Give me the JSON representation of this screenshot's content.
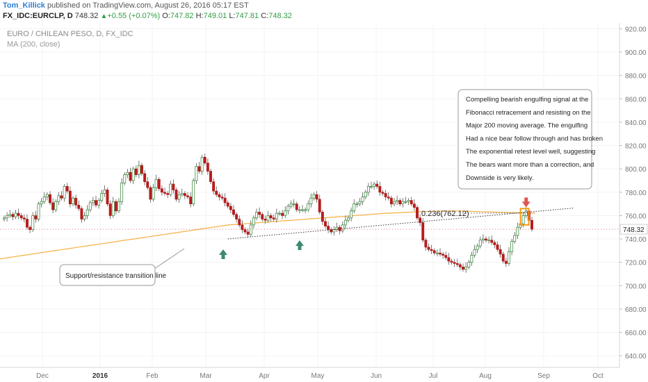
{
  "header": {
    "author": "Tom_Killick",
    "published_text": " published on TradingView.com, August 26, 2016 05:17 EST",
    "symbol": "FX_IDC:EURCLP, D",
    "last": "748.32",
    "change": "+0.55 (+0.07%)",
    "o_label": "O:",
    "o_value": "747.82",
    "h_label": "H:",
    "h_value": "749.01",
    "l_label": "L:",
    "l_value": "747.81",
    "c_label": "C:",
    "c_value": "748.32"
  },
  "legend": {
    "title": "EURO / CHILEAN PESO, D, FX_IDC",
    "ma": "MA (200, close)"
  },
  "colors": {
    "up_candle": "#ffffff",
    "up_border": "#2e7d32",
    "down_candle": "#b71c1c",
    "ma_line": "#f5b041",
    "arrow_green": "#3d8b6e",
    "arrow_red": "#e0574f",
    "highlight": "#f39c12",
    "last_price_line": "#c62828"
  },
  "icons": {
    "up_arrow": "triangle-up",
    "support_arrow": "arrow-up",
    "resistance_arrow": "arrow-down"
  },
  "annotations": {
    "callout_main": [
      "Compelling bearish engulfing signal at the",
      "Fibonacci retracement and resisting on the",
      "Major 200 moving average. The engulfing",
      "Had a nice bear follow through and has broken",
      "The exponential retest level well, suggesting",
      "The bears want more than a correction, and",
      "Downside is very likely."
    ],
    "callout_support": "Support/resistance transition line",
    "fib_label": "0.236(762.12)"
  },
  "chart_data": {
    "type": "candlestick",
    "symbol": "EURCLP",
    "ylim": [
      630,
      925
    ],
    "y_ticks": [
      640,
      660,
      680,
      700,
      720,
      740,
      760,
      780,
      800,
      820,
      840,
      860,
      880,
      900,
      920
    ],
    "y_tick_labels": [
      "640.00",
      "660.00",
      "680.00",
      "700.00",
      "720.00",
      "740.00",
      "760.00",
      "780.00",
      "800.00",
      "820.00",
      "840.00",
      "860.00",
      "880.00",
      "900.00",
      "920.00"
    ],
    "x_labels": [
      "Dec",
      "2016",
      "Feb",
      "Mar",
      "Apr",
      "May",
      "Jun",
      "Jul",
      "Aug",
      "Sep",
      "Oct"
    ],
    "last_price_label": "748.32",
    "close_series": [
      758,
      760,
      761,
      759,
      762,
      760,
      758,
      757,
      750,
      748,
      760,
      757,
      770,
      772,
      776,
      778,
      771,
      765,
      772,
      777,
      775,
      785,
      781,
      770,
      775,
      769,
      766,
      757,
      760,
      765,
      771,
      773,
      769,
      773,
      779,
      782,
      770,
      760,
      772,
      764,
      772,
      788,
      795,
      797,
      790,
      800,
      795,
      803,
      796,
      789,
      784,
      774,
      784,
      791,
      783,
      780,
      779,
      778,
      787,
      782,
      774,
      778,
      779,
      777,
      776,
      770,
      790,
      802,
      798,
      810,
      805,
      798,
      789,
      781,
      778,
      776,
      775,
      771,
      768,
      765,
      761,
      757,
      752,
      748,
      746,
      744,
      752,
      758,
      763,
      761,
      757,
      756,
      760,
      758,
      757,
      762,
      762,
      760,
      764,
      768,
      770,
      770,
      765,
      765,
      765,
      765,
      770,
      775,
      778,
      774,
      763,
      755,
      751,
      748,
      746,
      748,
      750,
      747,
      752,
      756,
      758,
      764,
      770,
      770,
      772,
      776,
      780,
      785,
      785,
      787,
      785,
      780,
      779,
      776,
      775,
      770,
      772,
      773,
      770,
      772,
      772,
      773,
      770,
      767,
      758,
      754,
      739,
      733,
      731,
      730,
      728,
      728,
      727,
      726,
      724,
      721,
      720,
      719,
      718,
      716,
      714,
      716,
      720,
      726,
      731,
      734,
      739,
      740,
      739,
      739,
      737,
      735,
      731,
      727,
      721,
      719,
      729,
      738,
      743,
      750,
      753,
      760,
      764,
      756,
      748.32
    ],
    "ma200_series": [
      723,
      724,
      725,
      726,
      727,
      728,
      729,
      730,
      731,
      732,
      733,
      734,
      735,
      736,
      737,
      738,
      739,
      740,
      741,
      742,
      743,
      744,
      745,
      746,
      747,
      748,
      749,
      750,
      751,
      752,
      752.5,
      753,
      753.5,
      754,
      754.5,
      755,
      755.5,
      756,
      756.5,
      757,
      757.5,
      758,
      758.5,
      759,
      759.5,
      760,
      760.5,
      761,
      761.5,
      762,
      762.3,
      762.6,
      762.9,
      763.2,
      763.5,
      763.7,
      763.9,
      764,
      764,
      763.8,
      763.6,
      763.4,
      763.2,
      763,
      762.8,
      762.6,
      762.4,
      762.2,
      762.1
    ],
    "fib_level": 762.12,
    "trendline": {
      "from": {
        "x_index": 78,
        "price": 740
      },
      "to": {
        "x_index": 189,
        "price": 765
      }
    }
  }
}
